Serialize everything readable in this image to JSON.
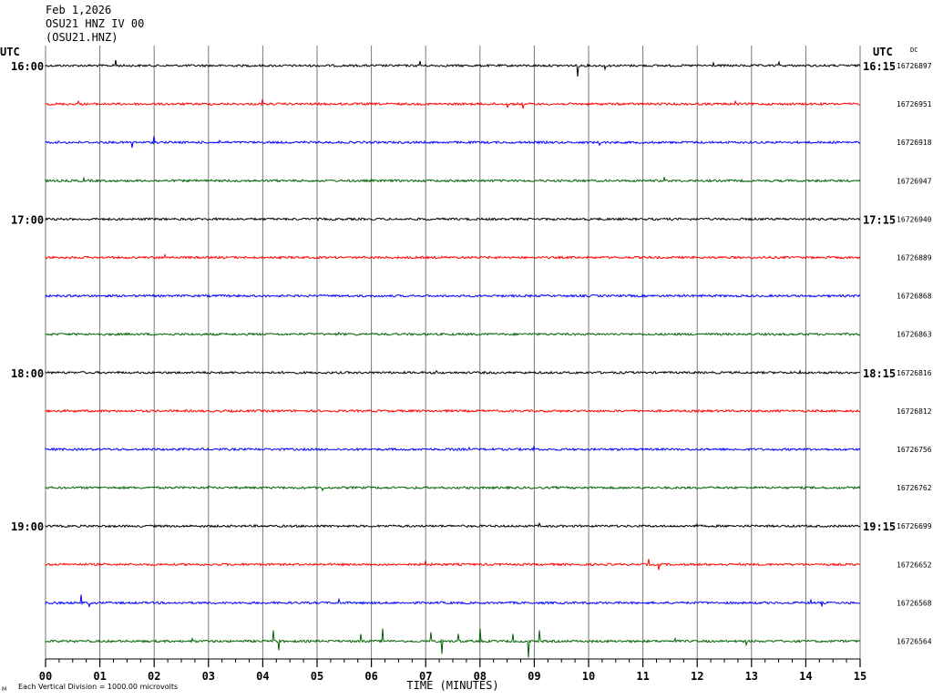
{
  "header": {
    "date": "Feb 1,2026",
    "station": "OSU21 HNZ IV 00",
    "channel_code": "(OSU21.HNZ)"
  },
  "footer": {
    "scale_note": "Each Vertical Division = 1000.00 microvolts",
    "corner_mark": "M"
  },
  "chart_data": {
    "type": "line",
    "title": "",
    "xlabel": "TIME (MINUTES)",
    "x_ticks": [
      "00",
      "01",
      "02",
      "03",
      "04",
      "05",
      "06",
      "07",
      "08",
      "09",
      "10",
      "11",
      "12",
      "13",
      "14",
      "15"
    ],
    "xlim": [
      0,
      15
    ],
    "left_axis_label": "UTC",
    "right_axis_label": "UTC",
    "right_header": "DC",
    "colors": [
      "#000000",
      "#ff0000",
      "#0000ff",
      "#006400"
    ],
    "grid": true,
    "traces": [
      {
        "left": "16:00",
        "right": "16:15",
        "dc": "16726897",
        "color": "#000000",
        "events": [
          {
            "t": 1.3,
            "a": 6
          },
          {
            "t": 6.9,
            "a": 5
          },
          {
            "t": 9.8,
            "a": -12
          },
          {
            "t": 10.3,
            "a": -4
          },
          {
            "t": 12.3,
            "a": 3
          },
          {
            "t": 13.5,
            "a": 4
          }
        ]
      },
      {
        "left": "",
        "right": "",
        "dc": "16726951",
        "color": "#ff0000",
        "events": [
          {
            "t": 0.6,
            "a": 3
          },
          {
            "t": 4.0,
            "a": 5
          },
          {
            "t": 8.5,
            "a": -4
          },
          {
            "t": 8.8,
            "a": -5
          },
          {
            "t": 12.7,
            "a": 3
          }
        ]
      },
      {
        "left": "",
        "right": "",
        "dc": "16726918",
        "color": "#0000ff",
        "events": [
          {
            "t": 1.6,
            "a": -6
          },
          {
            "t": 2.0,
            "a": 7
          },
          {
            "t": 3.2,
            "a": 2
          },
          {
            "t": 10.2,
            "a": -3
          }
        ]
      },
      {
        "left": "",
        "right": "",
        "dc": "16726947",
        "color": "#006400",
        "events": [
          {
            "t": 0.7,
            "a": 3
          },
          {
            "t": 11.4,
            "a": 4
          }
        ]
      },
      {
        "left": "17:00",
        "right": "17:15",
        "dc": "16726940",
        "color": "#000000",
        "events": []
      },
      {
        "left": "",
        "right": "",
        "dc": "16726889",
        "color": "#ff0000",
        "events": [
          {
            "t": 2.2,
            "a": 3
          }
        ]
      },
      {
        "left": "",
        "right": "",
        "dc": "16726868",
        "color": "#0000ff",
        "events": []
      },
      {
        "left": "",
        "right": "",
        "dc": "16726863",
        "color": "#006400",
        "events": [
          {
            "t": 5.4,
            "a": 2
          }
        ]
      },
      {
        "left": "18:00",
        "right": "18:15",
        "dc": "16726816",
        "color": "#000000",
        "events": [
          {
            "t": 7.2,
            "a": 2
          },
          {
            "t": 13.9,
            "a": 2
          }
        ]
      },
      {
        "left": "",
        "right": "",
        "dc": "16726812",
        "color": "#ff0000",
        "events": []
      },
      {
        "left": "",
        "right": "",
        "dc": "16726756",
        "color": "#0000ff",
        "events": [
          {
            "t": 7.8,
            "a": 2
          },
          {
            "t": 9.0,
            "a": 3
          }
        ]
      },
      {
        "left": "",
        "right": "",
        "dc": "16726762",
        "color": "#006400",
        "events": [
          {
            "t": 3.0,
            "a": 2
          },
          {
            "t": 5.1,
            "a": -3
          }
        ]
      },
      {
        "left": "19:00",
        "right": "19:15",
        "dc": "16726699",
        "color": "#000000",
        "events": [
          {
            "t": 9.1,
            "a": 3
          },
          {
            "t": 12.0,
            "a": 2
          }
        ]
      },
      {
        "left": "",
        "right": "",
        "dc": "16726652",
        "color": "#ff0000",
        "events": [
          {
            "t": 7.0,
            "a": 4
          },
          {
            "t": 11.1,
            "a": 6
          },
          {
            "t": 11.3,
            "a": -6
          }
        ]
      },
      {
        "left": "",
        "right": "",
        "dc": "16726568",
        "color": "#0000ff",
        "events": [
          {
            "t": 0.65,
            "a": 9
          },
          {
            "t": 0.8,
            "a": -4
          },
          {
            "t": 5.4,
            "a": 4
          },
          {
            "t": 14.1,
            "a": 3
          },
          {
            "t": 14.3,
            "a": -4
          }
        ]
      },
      {
        "left": "",
        "right": "",
        "dc": "16726564",
        "color": "#006400",
        "events": [
          {
            "t": 2.7,
            "a": 3
          },
          {
            "t": 4.2,
            "a": 12
          },
          {
            "t": 4.3,
            "a": -10
          },
          {
            "t": 5.8,
            "a": 8
          },
          {
            "t": 6.2,
            "a": 14
          },
          {
            "t": 7.1,
            "a": 10
          },
          {
            "t": 7.3,
            "a": -14
          },
          {
            "t": 7.6,
            "a": 8
          },
          {
            "t": 8.0,
            "a": 14
          },
          {
            "t": 8.6,
            "a": 8
          },
          {
            "t": 8.9,
            "a": -18
          },
          {
            "t": 9.1,
            "a": 12
          },
          {
            "t": 11.6,
            "a": 3
          },
          {
            "t": 12.9,
            "a": -4
          }
        ]
      }
    ]
  }
}
